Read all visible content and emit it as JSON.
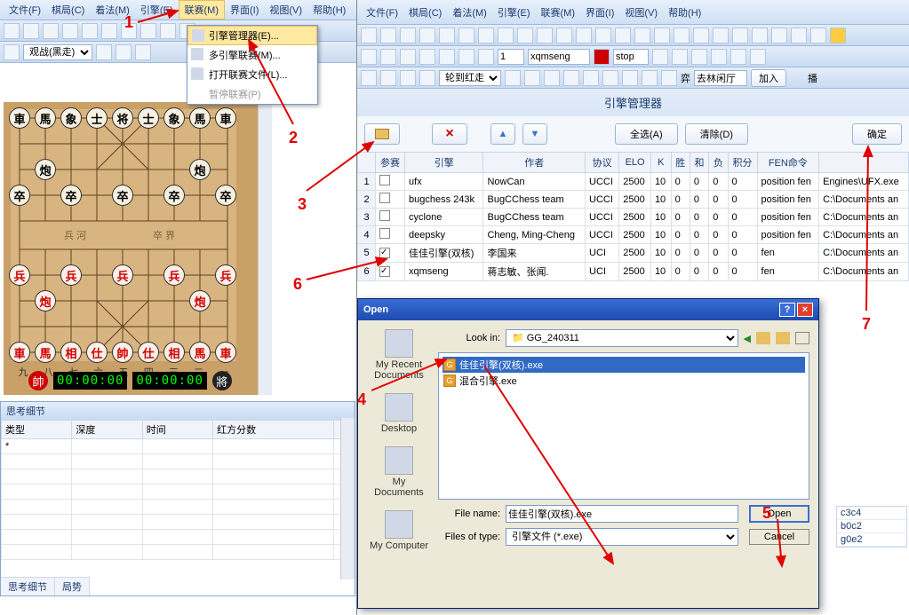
{
  "left": {
    "menu": [
      "文件(F)",
      "棋局(C)",
      "着法(M)",
      "引擎(E)",
      "联赛(M)",
      "界面(I)",
      "视图(V)",
      "帮助(H)"
    ],
    "dropdown": [
      {
        "label": "引擎管理器(E)...",
        "hl": true
      },
      {
        "label": "多引擎联赛(M)..."
      },
      {
        "label": "打开联赛文件(L)..."
      },
      {
        "label": "暂停联赛(P)",
        "disabled": true
      }
    ],
    "mode": "观战(黑走)",
    "coords": [
      "九",
      "八",
      "七",
      "六",
      "五",
      "四",
      "三",
      "二",
      "一"
    ],
    "timer_red": "00:00:00",
    "timer_black": "00:00:00",
    "think_title": "思考细节",
    "think_cols": [
      "类型",
      "深度",
      "时间",
      "红方分数"
    ],
    "tabs": [
      "思考细节",
      "局势"
    ],
    "pieces": {
      "black_back": [
        "車",
        "馬",
        "象",
        "士",
        "将",
        "士",
        "象",
        "馬",
        "車"
      ],
      "black_cannon": "炮",
      "black_pawn": "卒",
      "red_back": [
        "車",
        "馬",
        "相",
        "仕",
        "帥",
        "仕",
        "相",
        "馬",
        "車"
      ],
      "red_cannon": "炮",
      "red_pawn": "兵",
      "river_l": "兵 河",
      "river_r": "卒 界"
    },
    "side_red": "帥",
    "side_black": "將"
  },
  "right": {
    "menu": [
      "文件(F)",
      "棋局(C)",
      "着法(M)",
      "引擎(E)",
      "联赛(M)",
      "界面(I)",
      "视图(V)",
      "帮助(H)"
    ],
    "bar2": {
      "num": "1",
      "eng": "xqmseng",
      "btn": "stop"
    },
    "bar3": {
      "mode": "轮到红走",
      "place": "去林闲厅",
      "join": "加入",
      "bo": "播",
      "qi": "弈"
    },
    "mgr_title": "引擎管理器",
    "toolbar": {
      "selall": "全选(A)",
      "clear": "清除(D)",
      "ok": "确定"
    },
    "cols": [
      "参赛",
      "引擎",
      "作者",
      "协议",
      "ELO",
      "K",
      "胜",
      "和",
      "负",
      "积分",
      "FEN命令",
      ""
    ],
    "rows": [
      {
        "n": "1",
        "chk": false,
        "eng": "ufx",
        "auth": "NowCan",
        "proto": "UCCI",
        "elo": "2500",
        "k": "10",
        "w": "0",
        "d": "0",
        "l": "0",
        "pts": "0",
        "fen": "position fen",
        "path": "Engines\\UFX.exe"
      },
      {
        "n": "2",
        "chk": false,
        "eng": "bugchess 243k",
        "auth": "BugCChess team",
        "proto": "UCCI",
        "elo": "2500",
        "k": "10",
        "w": "0",
        "d": "0",
        "l": "0",
        "pts": "0",
        "fen": "position fen",
        "path": "C:\\Documents an"
      },
      {
        "n": "3",
        "chk": false,
        "eng": "cyclone",
        "auth": "BugCChess team",
        "proto": "UCCI",
        "elo": "2500",
        "k": "10",
        "w": "0",
        "d": "0",
        "l": "0",
        "pts": "0",
        "fen": "position fen",
        "path": "C:\\Documents an"
      },
      {
        "n": "4",
        "chk": false,
        "eng": "deepsky",
        "auth": "Cheng, Ming-Cheng",
        "proto": "UCCI",
        "elo": "2500",
        "k": "10",
        "w": "0",
        "d": "0",
        "l": "0",
        "pts": "0",
        "fen": "position fen",
        "path": "C:\\Documents an"
      },
      {
        "n": "5",
        "chk": true,
        "eng": "佳佳引擎(双核)",
        "auth": "李国来",
        "proto": "UCI",
        "elo": "2500",
        "k": "10",
        "w": "0",
        "d": "0",
        "l": "0",
        "pts": "0",
        "fen": "fen",
        "path": "C:\\Documents an"
      },
      {
        "n": "6",
        "chk": true,
        "eng": "xqmseng",
        "auth": "蒋志敏、张闻.",
        "proto": "UCI",
        "elo": "2500",
        "k": "10",
        "w": "0",
        "d": "0",
        "l": "0",
        "pts": "0",
        "fen": "fen",
        "path": "C:\\Documents an"
      }
    ],
    "moves": [
      "c3c4",
      "b0c2",
      "g0e2"
    ]
  },
  "dialog": {
    "title": "Open",
    "lookin_lbl": "Look in:",
    "lookin": "GG_240311",
    "places": [
      "My Recent Documents",
      "Desktop",
      "My Documents",
      "My Computer"
    ],
    "files": [
      {
        "name": "佳佳引擎(双核).exe",
        "sel": true
      },
      {
        "name": "混合引擎.exe",
        "sel": false
      }
    ],
    "filename_lbl": "File name:",
    "filename": "佳佳引擎(双核).exe",
    "filetype_lbl": "Files of type:",
    "filetype": "引擎文件 (*.exe)",
    "open": "Open",
    "cancel": "Cancel"
  },
  "annot": {
    "1": "1",
    "2": "2",
    "3": "3",
    "4": "4",
    "5": "5",
    "6": "6",
    "7": "7"
  },
  "colors": {
    "arrow": "#e00000"
  }
}
